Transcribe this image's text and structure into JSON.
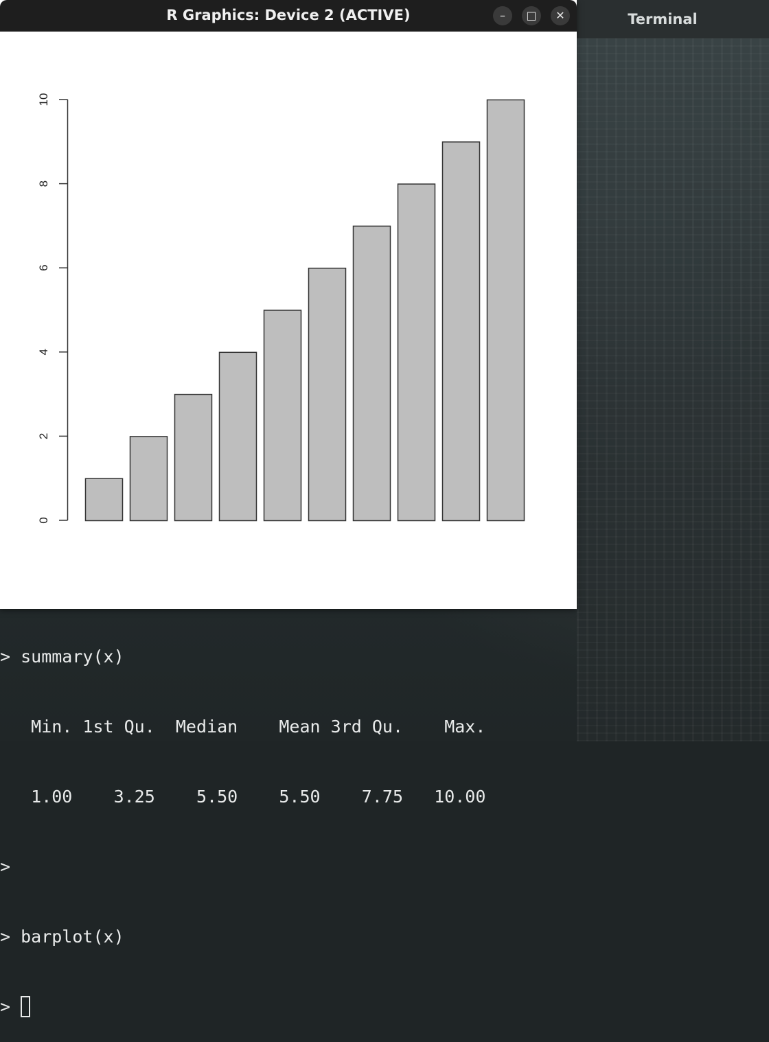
{
  "terminal": {
    "title": "Terminal",
    "lines": [
      "> summary(x)",
      "   Min. 1st Qu.  Median    Mean 3rd Qu.    Max.",
      "   1.00    3.25    5.50    5.50    7.75   10.00",
      ">",
      "> barplot(x)",
      "> "
    ]
  },
  "rwindow": {
    "title": "R Graphics: Device 2 (ACTIVE)",
    "minimize_glyph": "–",
    "maximize_glyph": "□",
    "close_glyph": "✕"
  },
  "colors": {
    "bar_fill": "#bebebe",
    "bar_stroke": "#333333",
    "axis": "#333333",
    "titlebar": "#1e1e1e"
  },
  "chart_data": {
    "type": "bar",
    "categories": [
      "",
      "",
      "",
      "",
      "",
      "",
      "",
      "",
      "",
      ""
    ],
    "values": [
      1,
      2,
      3,
      4,
      5,
      6,
      7,
      8,
      9,
      10
    ],
    "title": "",
    "xlabel": "",
    "ylabel": "",
    "ylim": [
      0,
      10
    ],
    "yticks": [
      0,
      2,
      4,
      6,
      8,
      10
    ],
    "ytick_labels": [
      "0",
      "2",
      "4",
      "6",
      "8",
      "10"
    ],
    "grid": false,
    "legend": "none"
  }
}
